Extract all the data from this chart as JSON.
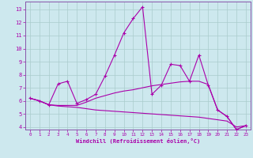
{
  "xlabel": "Windchill (Refroidissement éolien,°C)",
  "background_color": "#cde8ee",
  "grid_color": "#aacccc",
  "line_color": "#aa00aa",
  "spine_color": "#8855aa",
  "xlim": [
    -0.5,
    23.5
  ],
  "ylim": [
    3.8,
    13.6
  ],
  "yticks": [
    4,
    5,
    6,
    7,
    8,
    9,
    10,
    11,
    12,
    13
  ],
  "xticks": [
    0,
    1,
    2,
    3,
    4,
    5,
    6,
    7,
    8,
    9,
    10,
    11,
    12,
    13,
    14,
    15,
    16,
    17,
    18,
    19,
    20,
    21,
    22,
    23
  ],
  "series1_x": [
    0,
    1,
    2,
    3,
    4,
    5,
    6,
    7,
    8,
    9,
    10,
    11,
    12,
    13,
    14,
    15,
    16,
    17,
    18,
    19,
    20,
    21,
    22,
    23
  ],
  "series1_y": [
    6.2,
    6.0,
    5.7,
    7.3,
    7.5,
    5.8,
    6.1,
    6.5,
    7.9,
    9.5,
    11.2,
    12.3,
    13.2,
    6.5,
    7.2,
    8.8,
    8.7,
    7.5,
    9.5,
    7.2,
    5.3,
    4.8,
    3.8,
    4.1
  ],
  "series2_x": [
    0,
    1,
    2,
    3,
    4,
    5,
    6,
    7,
    8,
    9,
    10,
    11,
    12,
    13,
    14,
    15,
    16,
    17,
    18,
    19,
    20,
    21,
    22,
    23
  ],
  "series2_y": [
    6.2,
    6.0,
    5.7,
    5.65,
    5.65,
    5.65,
    5.9,
    6.2,
    6.4,
    6.6,
    6.75,
    6.85,
    7.0,
    7.15,
    7.25,
    7.35,
    7.45,
    7.5,
    7.5,
    7.25,
    5.3,
    4.8,
    3.8,
    4.1
  ],
  "series3_x": [
    0,
    1,
    2,
    3,
    4,
    5,
    6,
    7,
    8,
    9,
    10,
    11,
    12,
    13,
    14,
    15,
    16,
    17,
    18,
    19,
    20,
    21,
    22,
    23
  ],
  "series3_y": [
    6.2,
    6.0,
    5.7,
    5.6,
    5.55,
    5.5,
    5.4,
    5.3,
    5.25,
    5.2,
    5.15,
    5.1,
    5.05,
    5.0,
    4.95,
    4.9,
    4.85,
    4.8,
    4.75,
    4.65,
    4.55,
    4.45,
    4.0,
    4.1
  ]
}
